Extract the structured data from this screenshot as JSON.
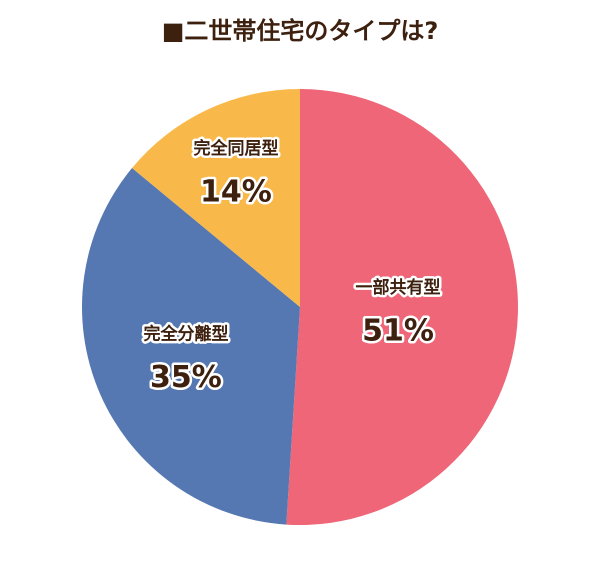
{
  "chart_data": {
    "type": "pie",
    "title": "■二世帯住宅のタイプは?",
    "categories": [
      "一部共有型",
      "完全分離型",
      "完全同居型"
    ],
    "values": [
      51,
      35,
      14
    ],
    "value_labels": [
      "51%",
      "35%",
      "14%"
    ],
    "colors": [
      "#ee6677",
      "#5578b2",
      "#f9b94a"
    ]
  }
}
